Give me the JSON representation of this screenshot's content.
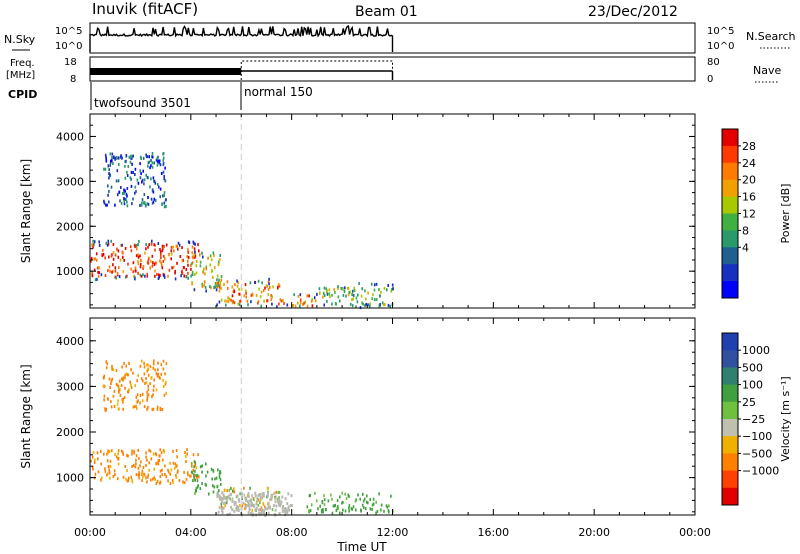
{
  "header": {
    "station": "Inuvik (fitACF)",
    "beam": "Beam 01",
    "date": "23/Dec/2012"
  },
  "left_labels": {
    "nsky": "N.Sky",
    "freq": "Freq.",
    "mhz": "[MHz]",
    "cpid": "CPID"
  },
  "right_labels": {
    "nsearch": "N.Search",
    "nave": "Nave"
  },
  "strip_ticks": {
    "nsky_left": [
      "10^5",
      "10^0"
    ],
    "nsky_right": [
      "10^5",
      "10^0"
    ],
    "freq_left": [
      "18",
      "8"
    ],
    "nave_right": [
      "80",
      "0"
    ]
  },
  "cpid_segments": [
    {
      "label": "twofsound 3501",
      "start_hour": 0
    },
    {
      "label": "normal 150",
      "start_hour": 6
    }
  ],
  "colorbars": {
    "power": {
      "label": "Power [dB]",
      "ticks": [
        "28",
        "24",
        "20",
        "16",
        "12",
        "8",
        "4"
      ],
      "colors": [
        "#e50000",
        "#ff3a00",
        "#ff7a00",
        "#f0a000",
        "#a8c800",
        "#40b040",
        "#2a9a6a",
        "#1e6090",
        "#1830c0",
        "#0000ff"
      ]
    },
    "velocity": {
      "label": "Velocity [m s⁻¹]",
      "ticks": [
        "1000",
        "500",
        "100",
        "25",
        "−25",
        "−100",
        "−500",
        "−1000"
      ],
      "colors": [
        "#2040b0",
        "#3050a0",
        "#308070",
        "#40a040",
        "#70c040",
        "#c0c0b0",
        "#f0b000",
        "#ff8000",
        "#ff4000",
        "#e00000"
      ]
    }
  },
  "chart_data": [
    {
      "type": "heatmap",
      "title": "",
      "xlabel": "Time UT",
      "ylabel": "Slant Range [km]",
      "x_ticks": [
        "00:00",
        "04:00",
        "08:00",
        "12:00",
        "16:00",
        "20:00",
        "00:00"
      ],
      "y_ticks": [
        "1000",
        "2000",
        "3000",
        "4000"
      ],
      "xlim_hours": [
        0,
        24
      ],
      "ylim_km": [
        180,
        4500
      ],
      "colorbar": "power",
      "regions": [
        {
          "t0": 0.0,
          "t1": 4.3,
          "r0": 900,
          "r1": 1650,
          "level": 26,
          "desc": "main echo band"
        },
        {
          "t0": 4.0,
          "t1": 5.2,
          "r0": 650,
          "r1": 1400,
          "level": 18
        },
        {
          "t0": 5.0,
          "t1": 7.5,
          "r0": 300,
          "r1": 800,
          "level": 22
        },
        {
          "t0": 7.5,
          "t1": 9.0,
          "r0": 250,
          "r1": 500,
          "level": 22
        },
        {
          "t0": 9.0,
          "t1": 12.0,
          "r0": 250,
          "r1": 700,
          "level": 14
        },
        {
          "t0": 0.5,
          "t1": 3.0,
          "r0": 2500,
          "r1": 3600,
          "level": 6
        }
      ]
    },
    {
      "type": "heatmap",
      "title": "",
      "xlabel": "Time UT",
      "ylabel": "Slant Range [km]",
      "x_ticks": [
        "00:00",
        "04:00",
        "08:00",
        "12:00",
        "16:00",
        "20:00",
        "00:00"
      ],
      "y_ticks": [
        "1000",
        "2000",
        "3000",
        "4000"
      ],
      "xlim_hours": [
        0,
        24
      ],
      "ylim_km": [
        180,
        4500
      ],
      "colorbar": "velocity",
      "regions": [
        {
          "t0": 0.0,
          "t1": 4.3,
          "r0": 900,
          "r1": 1650,
          "level": -100
        },
        {
          "t0": 4.0,
          "t1": 5.2,
          "r0": 650,
          "r1": 1400,
          "level": 100
        },
        {
          "t0": 5.0,
          "t1": 7.5,
          "r0": 300,
          "r1": 800,
          "level": 0
        },
        {
          "t0": 8.5,
          "t1": 12.0,
          "r0": 250,
          "r1": 700,
          "level": 100
        },
        {
          "t0": 0.5,
          "t1": 3.0,
          "r0": 2500,
          "r1": 3600,
          "level": -100
        }
      ]
    }
  ]
}
